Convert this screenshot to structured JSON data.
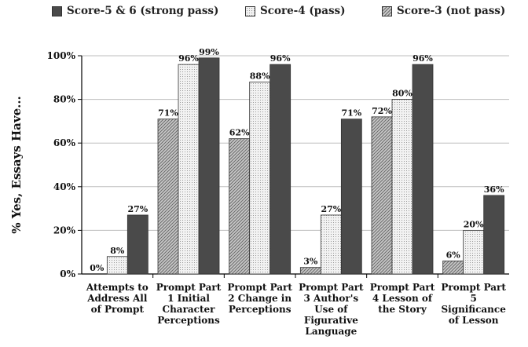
{
  "chart_data": {
    "type": "bar",
    "title": "",
    "xlabel": "",
    "ylabel": "% Yes, Essays Have...",
    "ylim": [
      0,
      100
    ],
    "yticks": [
      "0%",
      "20%",
      "40%",
      "60%",
      "80%",
      "100%"
    ],
    "grid": true,
    "legend_position": "top",
    "categories": [
      [
        "Attempts to",
        "Address All",
        "of Prompt"
      ],
      [
        "Prompt Part",
        "1 Initial",
        "Character",
        "Perceptions"
      ],
      [
        "Prompt Part",
        "2 Change in",
        "Perceptions"
      ],
      [
        "Prompt Part",
        "3 Author's",
        "Use of",
        "Figurative",
        "Language"
      ],
      [
        "Prompt Part",
        "4 Lesson of",
        "the Story"
      ],
      [
        "Prompt Part",
        "5",
        "Significance",
        "of Lesson"
      ]
    ],
    "series": [
      {
        "name": "Score-3 (not pass)",
        "values": [
          0,
          71,
          62,
          3,
          72,
          6
        ],
        "labels": [
          "0%",
          "71%",
          "62%",
          "3%",
          "72%",
          "6%"
        ],
        "color": "#bfbfbf",
        "pattern": "diag"
      },
      {
        "name": "Score-4 (pass)",
        "values": [
          8,
          96,
          88,
          27,
          80,
          20
        ],
        "labels": [
          "8%",
          "96%",
          "88%",
          "27%",
          "80%",
          "20%"
        ],
        "color": "#eeeeee",
        "pattern": "dots"
      },
      {
        "name": "Score-5 & 6 (strong pass)",
        "values": [
          27,
          99,
          96,
          71,
          96,
          36
        ],
        "labels": [
          "27%",
          "99%",
          "96%",
          "71%",
          "96%",
          "36%"
        ],
        "color": "#4a4a4a",
        "pattern": "solid"
      }
    ],
    "legend": [
      {
        "label": "Score-5 & 6 (strong pass)",
        "series": 2
      },
      {
        "label": "Score-4 (pass)",
        "series": 1
      },
      {
        "label": "Score-3 (not pass)",
        "series": 0
      }
    ]
  }
}
